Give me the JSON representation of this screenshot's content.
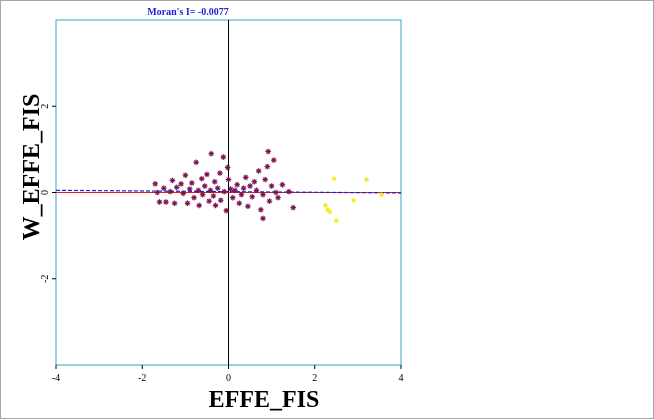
{
  "chart_data": {
    "type": "scatter",
    "title": "Moran's I= -0.0077",
    "xlabel": "EFFE_FIS",
    "ylabel": "W_EFFE_FIS",
    "xlim": [
      -4,
      4
    ],
    "ylim": [
      -4,
      4
    ],
    "x_ticks": [
      "-4",
      "-2",
      "0",
      "2",
      "4"
    ],
    "y_ticks": [
      "-2",
      "0",
      "2"
    ],
    "grid": false,
    "colors": {
      "title": "#1f1fd6",
      "axis_label": "#000000",
      "frame_line": "#36a0c8",
      "regression_line": "#1f1fd6",
      "reference_line": "#e02020",
      "series_main": "#7a1450",
      "series_highlight": "#f2ee2a"
    },
    "regression": {
      "slope": -0.0077,
      "intercept": 0.02
    },
    "series": [
      {
        "marker": "asterisk",
        "color": "#7a1450",
        "points": [
          [
            -1.7,
            0.2
          ],
          [
            -1.65,
            0.0
          ],
          [
            -1.6,
            -0.22
          ],
          [
            -1.5,
            0.1
          ],
          [
            -1.45,
            -0.22
          ],
          [
            -1.35,
            0.02
          ],
          [
            -1.3,
            0.28
          ],
          [
            -1.25,
            -0.25
          ],
          [
            -1.2,
            0.12
          ],
          [
            -1.1,
            0.2
          ],
          [
            -1.05,
            -0.02
          ],
          [
            -1.0,
            0.4
          ],
          [
            -0.95,
            -0.25
          ],
          [
            -0.9,
            0.08
          ],
          [
            -0.85,
            0.22
          ],
          [
            -0.8,
            -0.12
          ],
          [
            -0.75,
            0.7
          ],
          [
            -0.7,
            0.05
          ],
          [
            -0.68,
            -0.3
          ],
          [
            -0.62,
            0.32
          ],
          [
            -0.6,
            -0.05
          ],
          [
            -0.55,
            0.15
          ],
          [
            -0.5,
            0.42
          ],
          [
            -0.45,
            -0.2
          ],
          [
            -0.42,
            0.05
          ],
          [
            -0.4,
            0.9
          ],
          [
            -0.35,
            -0.08
          ],
          [
            -0.32,
            0.25
          ],
          [
            -0.3,
            -0.3
          ],
          [
            -0.25,
            0.1
          ],
          [
            -0.2,
            0.45
          ],
          [
            -0.18,
            -0.18
          ],
          [
            -0.12,
            0.82
          ],
          [
            -0.1,
            0.02
          ],
          [
            -0.05,
            -0.42
          ],
          [
            -0.02,
            0.58
          ],
          [
            0.05,
            0.08
          ],
          [
            0.1,
            -0.12
          ],
          [
            0.15,
            0.05
          ],
          [
            0.2,
            0.18
          ],
          [
            0.25,
            -0.25
          ],
          [
            0.3,
            -0.05
          ],
          [
            0.35,
            0.1
          ],
          [
            0.4,
            0.35
          ],
          [
            0.45,
            -0.32
          ],
          [
            0.5,
            0.15
          ],
          [
            0.55,
            -0.1
          ],
          [
            0.6,
            0.25
          ],
          [
            0.65,
            0.05
          ],
          [
            0.7,
            0.5
          ],
          [
            0.75,
            -0.4
          ],
          [
            0.8,
            -0.05
          ],
          [
            0.85,
            0.3
          ],
          [
            0.9,
            0.6
          ],
          [
            0.92,
            0.95
          ],
          [
            0.95,
            -0.2
          ],
          [
            1.0,
            0.15
          ],
          [
            1.05,
            0.75
          ],
          [
            1.1,
            0.0
          ],
          [
            1.15,
            -0.12
          ],
          [
            1.25,
            0.18
          ],
          [
            1.4,
            0.02
          ],
          [
            1.5,
            -0.35
          ],
          [
            0.8,
            -0.6
          ],
          [
            0.0,
            0.3
          ]
        ]
      },
      {
        "marker": "dot",
        "color": "#f2ee2a",
        "points": [
          [
            2.25,
            -0.3
          ],
          [
            2.3,
            -0.4
          ],
          [
            2.35,
            -0.45
          ],
          [
            2.45,
            0.32
          ],
          [
            2.5,
            -0.65
          ],
          [
            2.9,
            -0.18
          ],
          [
            3.2,
            0.3
          ],
          [
            3.55,
            -0.05
          ]
        ]
      }
    ]
  }
}
